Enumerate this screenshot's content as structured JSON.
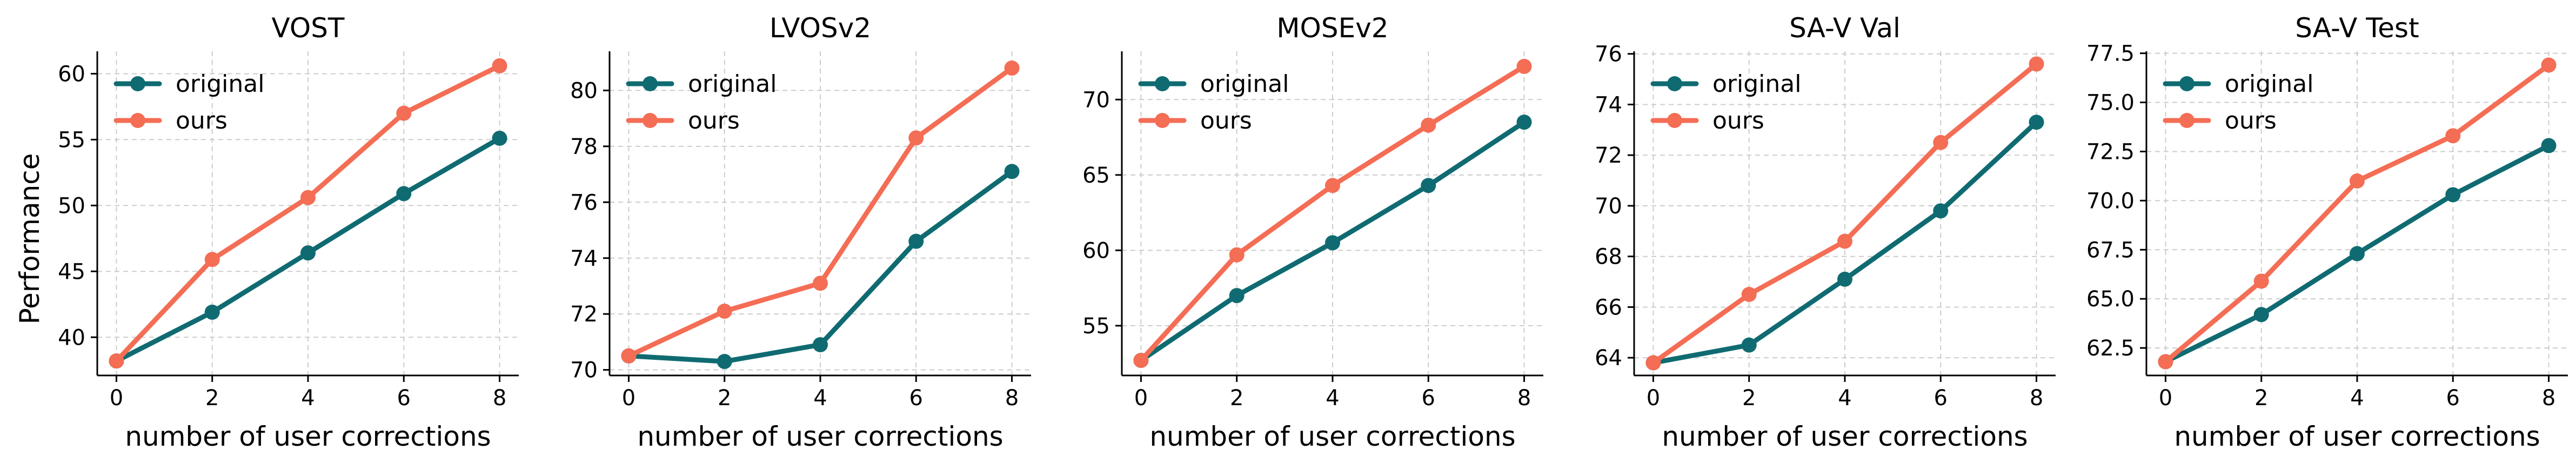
{
  "chart_data": {
    "type": "line",
    "ylabel": "Performance",
    "series_colors": {
      "original": "#0f6b71",
      "ours": "#f46d55"
    },
    "legend": {
      "entries": [
        "original",
        "ours"
      ],
      "placement": "top-left"
    },
    "panels": [
      {
        "title": "VOST",
        "xlabel": "number of user corrections",
        "x": [
          0,
          2,
          4,
          6,
          8
        ],
        "xticks": [
          "0",
          "2",
          "4",
          "6",
          "8"
        ],
        "xlim": [
          -0.4,
          8.4
        ],
        "ylim": [
          37.1,
          61.7
        ],
        "yticks": [
          "40",
          "45",
          "50",
          "55",
          "60"
        ],
        "grid": true,
        "series": [
          {
            "name": "original",
            "values": [
              38.2,
              41.9,
              46.4,
              50.9,
              55.1
            ]
          },
          {
            "name": "ours",
            "values": [
              38.2,
              45.9,
              50.6,
              57.0,
              60.6
            ]
          }
        ]
      },
      {
        "title": "LVOSv2",
        "xlabel": "number of user corrections",
        "x": [
          0,
          2,
          4,
          6,
          8
        ],
        "xticks": [
          "0",
          "2",
          "4",
          "6",
          "8"
        ],
        "xlim": [
          -0.4,
          8.4
        ],
        "ylim": [
          69.8,
          81.4
        ],
        "yticks": [
          "70",
          "72",
          "74",
          "76",
          "78",
          "80"
        ],
        "grid": true,
        "series": [
          {
            "name": "original",
            "values": [
              70.5,
              70.3,
              70.9,
              74.6,
              77.1
            ]
          },
          {
            "name": "ours",
            "values": [
              70.5,
              72.1,
              73.1,
              78.3,
              80.8
            ]
          }
        ]
      },
      {
        "title": "MOSEv2",
        "xlabel": "number of user corrections",
        "x": [
          0,
          2,
          4,
          6,
          8
        ],
        "xticks": [
          "0",
          "2",
          "4",
          "6",
          "8"
        ],
        "xlim": [
          -0.4,
          8.4
        ],
        "ylim": [
          51.7,
          73.2
        ],
        "yticks": [
          "55",
          "60",
          "65",
          "70"
        ],
        "grid": true,
        "series": [
          {
            "name": "original",
            "values": [
              52.7,
              57.0,
              60.5,
              64.3,
              68.5
            ]
          },
          {
            "name": "ours",
            "values": [
              52.7,
              59.7,
              64.3,
              68.3,
              72.2
            ]
          }
        ]
      },
      {
        "title": "SA-V Val",
        "xlabel": "number of user corrections",
        "x": [
          0,
          2,
          4,
          6,
          8
        ],
        "xticks": [
          "0",
          "2",
          "4",
          "6",
          "8"
        ],
        "xlim": [
          -0.4,
          8.4
        ],
        "ylim": [
          63.3,
          76.1
        ],
        "yticks": [
          "64",
          "66",
          "68",
          "70",
          "72",
          "74",
          "76"
        ],
        "grid": true,
        "series": [
          {
            "name": "original",
            "values": [
              63.8,
              64.5,
              67.1,
              69.8,
              73.3
            ]
          },
          {
            "name": "ours",
            "values": [
              63.8,
              66.5,
              68.6,
              72.5,
              75.6
            ]
          }
        ]
      },
      {
        "title": "SA-V Test",
        "xlabel": "number of user corrections",
        "x": [
          0,
          2,
          4,
          6,
          8
        ],
        "xticks": [
          "0",
          "2",
          "4",
          "6",
          "8"
        ],
        "xlim": [
          -0.4,
          8.4
        ],
        "ylim": [
          61.1,
          77.6
        ],
        "yticks": [
          "62.5",
          "65.0",
          "67.5",
          "70.0",
          "72.5",
          "75.0",
          "77.5"
        ],
        "grid": true,
        "series": [
          {
            "name": "original",
            "values": [
              61.8,
              64.2,
              67.3,
              70.3,
              72.8
            ]
          },
          {
            "name": "ours",
            "values": [
              61.8,
              65.9,
              71.0,
              73.3,
              76.9
            ]
          }
        ]
      }
    ]
  }
}
